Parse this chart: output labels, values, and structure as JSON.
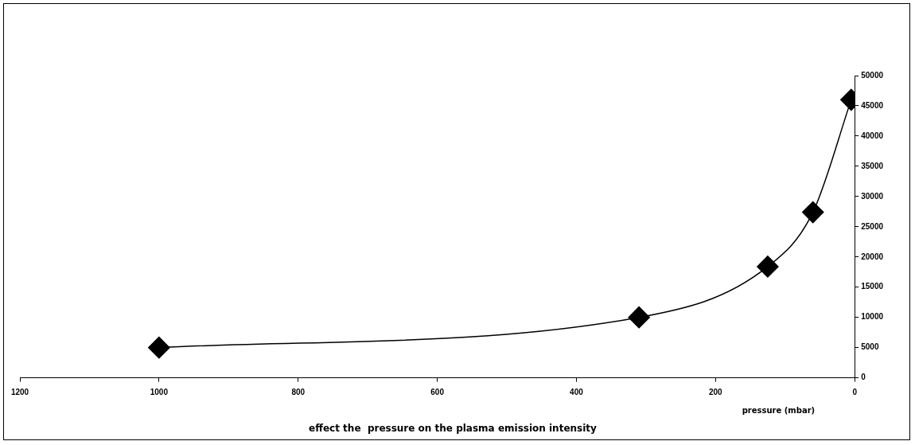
{
  "chart_data": {
    "type": "line",
    "title": "effect the  pressure on the plasma emission intensity",
    "xlabel": "pressure (mbar)",
    "x": [
      1000,
      310,
      125,
      60,
      5
    ],
    "series": [
      {
        "color": "#000000",
        "values": [
          5000,
          10000,
          18400,
          27400,
          46000
        ]
      }
    ],
    "xlim": [
      1200,
      0
    ],
    "xticks": [
      1200,
      1000,
      800,
      600,
      400,
      200,
      0
    ],
    "ylim": [
      0,
      50000
    ],
    "yticks": [
      0,
      5000,
      10000,
      15000,
      20000,
      25000,
      30000,
      35000,
      40000,
      45000,
      50000
    ],
    "grid": false,
    "legend": false,
    "marker": "diamond",
    "line_style": "solid"
  }
}
